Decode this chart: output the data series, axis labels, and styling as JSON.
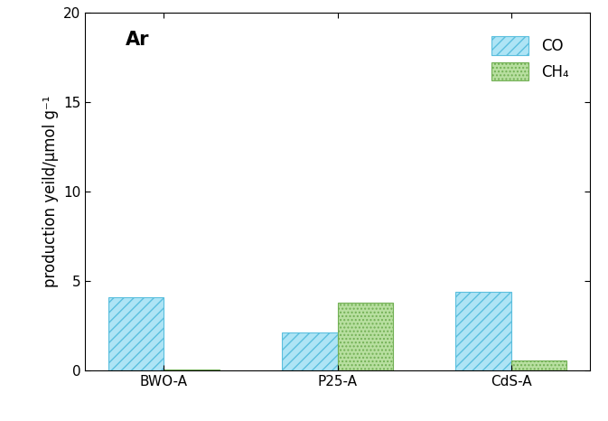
{
  "categories": [
    "BWO-A",
    "P25-A",
    "CdS-A"
  ],
  "co_values": [
    4.1,
    2.1,
    4.4
  ],
  "ch4_values": [
    0.05,
    3.8,
    0.55
  ],
  "co_color": "#AEE4F5",
  "ch4_color": "#B8DFA0",
  "co_edge_color": "#5BBFDE",
  "ch4_edge_color": "#72B055",
  "ylabel": "production yeild/μmol g⁻¹",
  "ylim": [
    0,
    20
  ],
  "yticks": [
    0,
    5,
    10,
    15,
    20
  ],
  "annotation": "Ar",
  "legend_co": "CO",
  "legend_ch4": "CH₄",
  "bar_width": 0.32,
  "label_fontsize": 12,
  "tick_fontsize": 11,
  "annot_fontsize": 15
}
